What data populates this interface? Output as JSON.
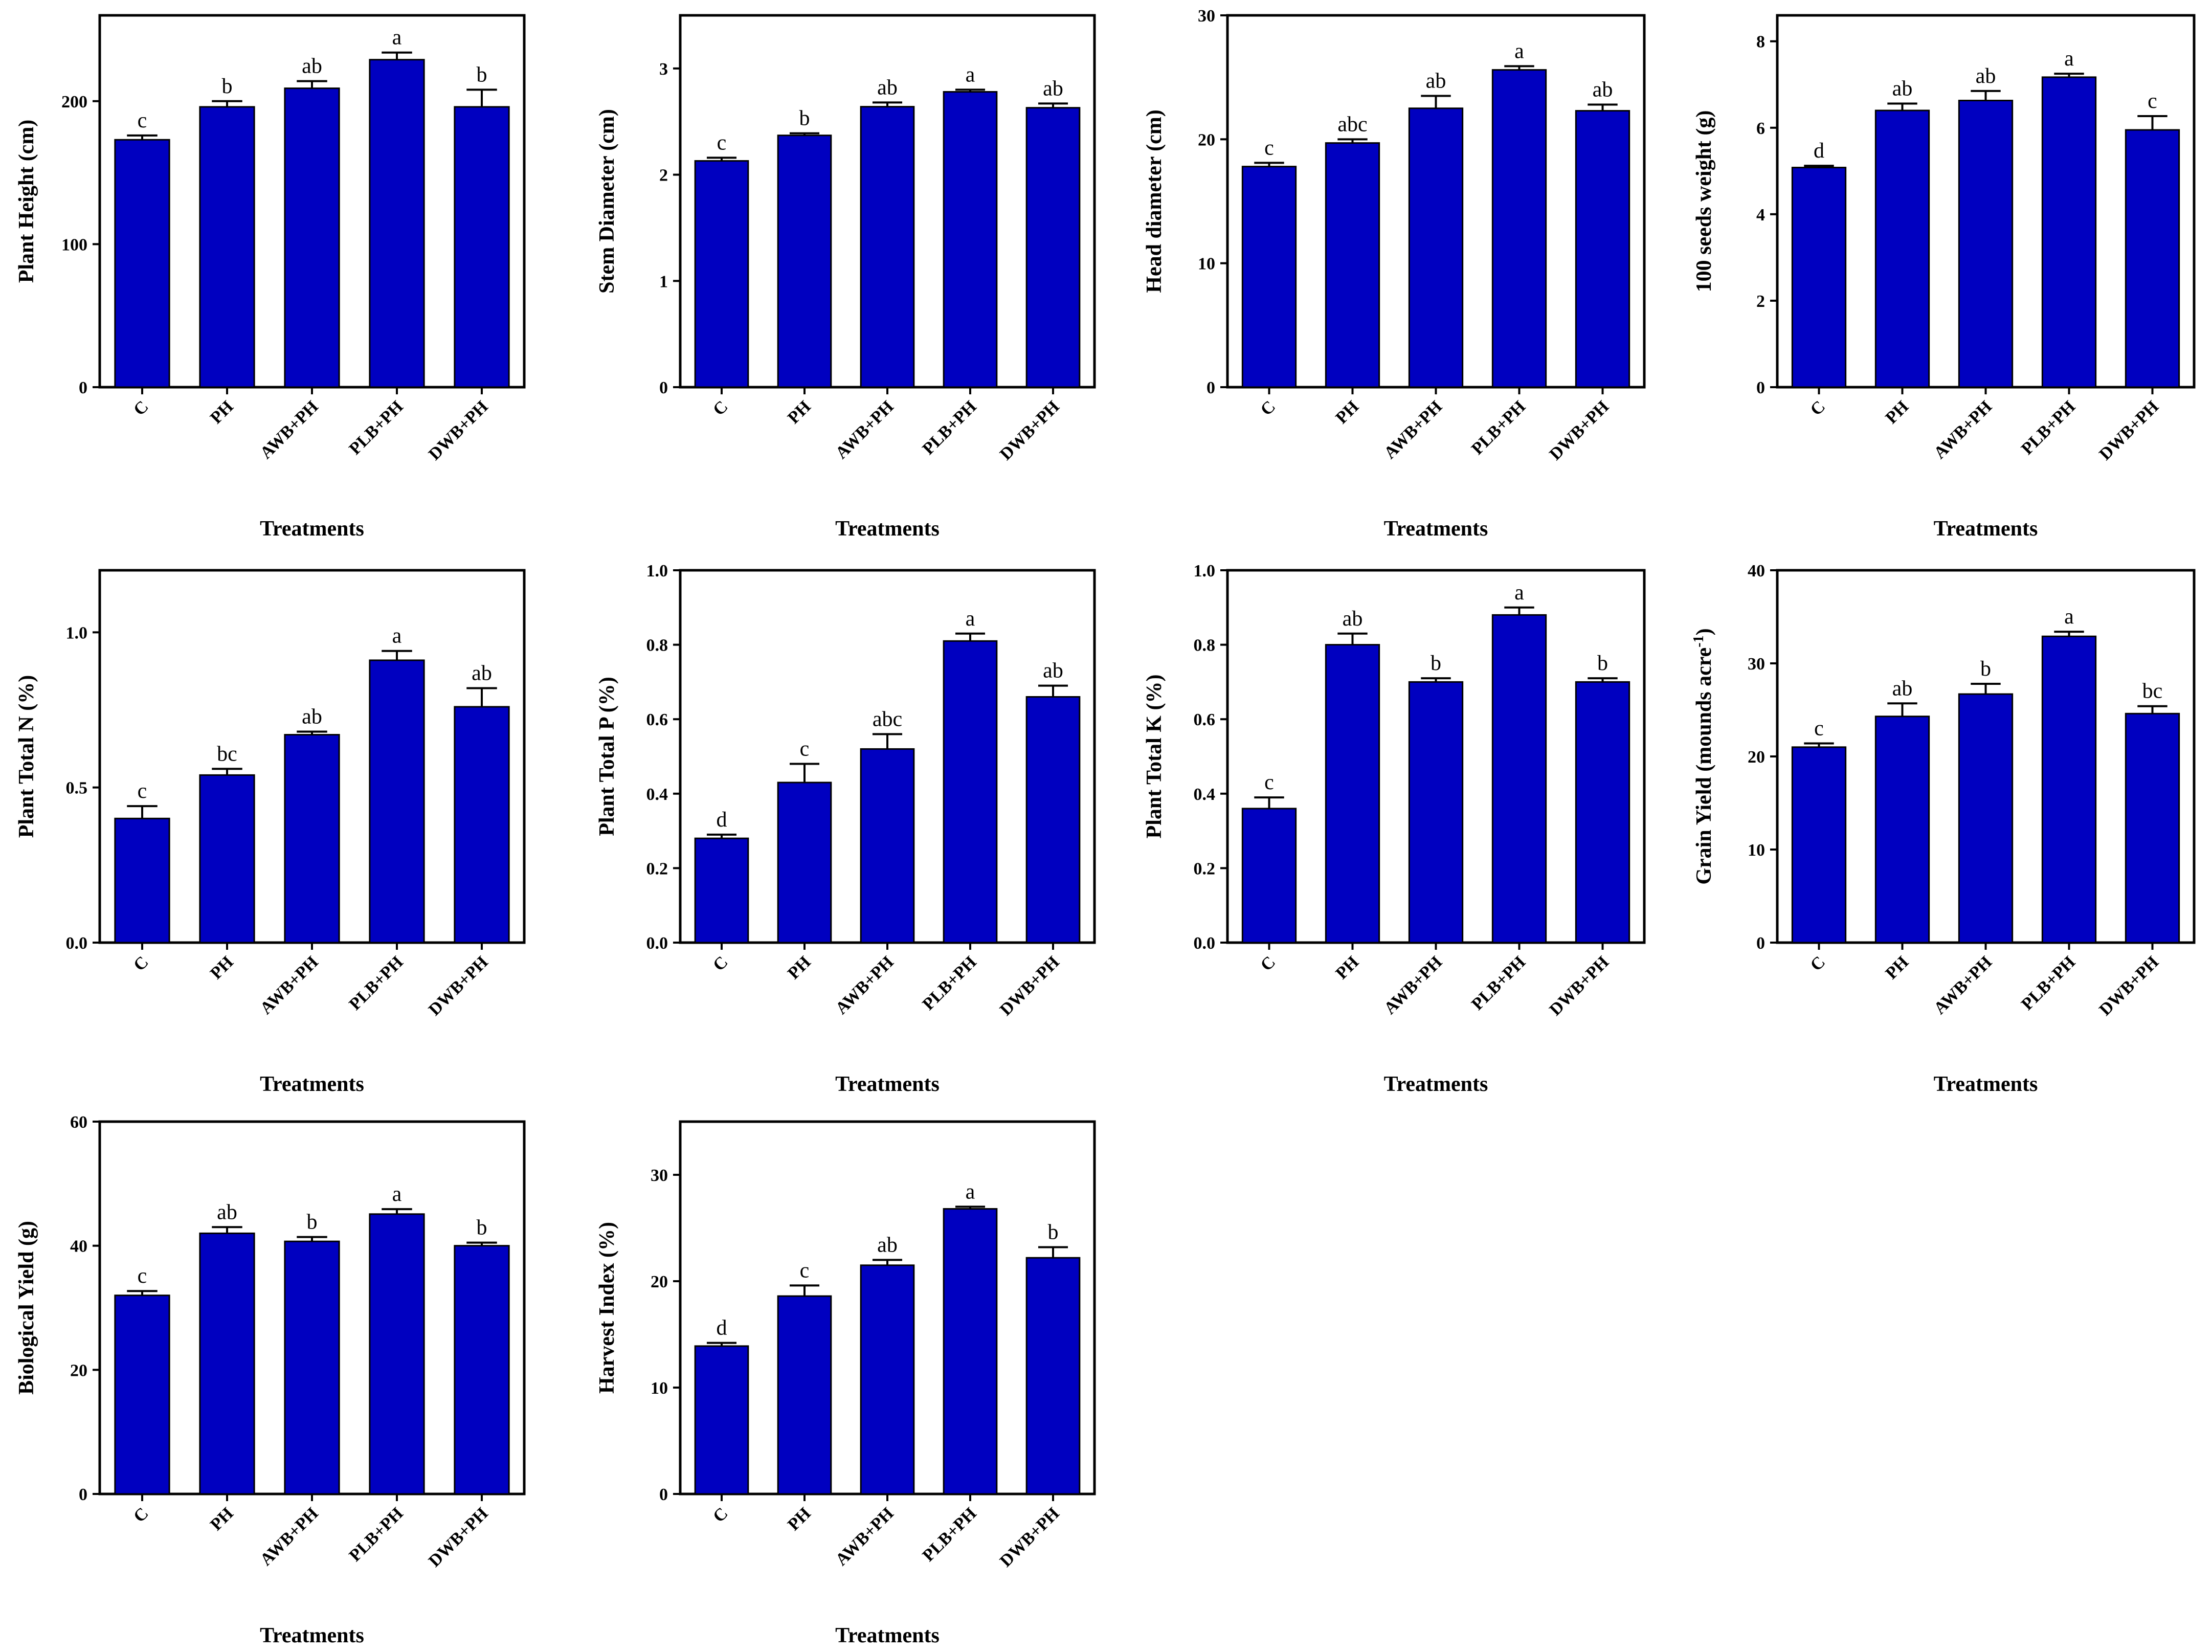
{
  "figure": {
    "categories": [
      "C",
      "PH",
      "AWB+PH",
      "PLB+PH",
      "DWB+PH"
    ],
    "bar_color": "#0000c0"
  },
  "chart_data": [
    {
      "type": "bar",
      "title": "",
      "xlabel": "Treatments",
      "ylabel": "Plant Height (cm)",
      "ylim": [
        0,
        260
      ],
      "ticks": [
        0,
        100,
        200
      ],
      "tick_labels": [
        "0",
        "100",
        "200"
      ],
      "categories": [
        "C",
        "PH",
        "AWB+PH",
        "PLB+PH",
        "DWB+PH"
      ],
      "values": [
        173,
        196,
        209,
        229,
        196
      ],
      "errors": [
        3,
        4,
        5,
        5,
        12
      ],
      "letters": [
        "c",
        "b",
        "ab",
        "a",
        "b"
      ]
    },
    {
      "type": "bar",
      "title": "",
      "xlabel": "Treatments",
      "ylabel": "Stem Diameter (cm)",
      "ylim": [
        0,
        3.5
      ],
      "ticks": [
        0,
        1,
        2,
        3
      ],
      "tick_labels": [
        "0",
        "1",
        "2",
        "3"
      ],
      "categories": [
        "C",
        "PH",
        "AWB+PH",
        "PLB+PH",
        "DWB+PH"
      ],
      "values": [
        2.13,
        2.37,
        2.64,
        2.78,
        2.63
      ],
      "errors": [
        0.03,
        0.02,
        0.04,
        0.02,
        0.04
      ],
      "letters": [
        "c",
        "b",
        "ab",
        "a",
        "ab"
      ]
    },
    {
      "type": "bar",
      "title": "",
      "xlabel": "Treatments",
      "ylabel": "Head diameter (cm)",
      "ylim": [
        0,
        30
      ],
      "ticks": [
        0,
        10,
        20,
        30
      ],
      "tick_labels": [
        "0",
        "10",
        "20",
        "30"
      ],
      "categories": [
        "C",
        "PH",
        "AWB+PH",
        "PLB+PH",
        "DWB+PH"
      ],
      "values": [
        17.8,
        19.7,
        22.5,
        25.6,
        22.3
      ],
      "errors": [
        0.3,
        0.3,
        1.0,
        0.3,
        0.5
      ],
      "letters": [
        "c",
        "abc",
        "ab",
        "a",
        "ab"
      ]
    },
    {
      "type": "bar",
      "title": "",
      "xlabel": "Treatments",
      "ylabel": "100 seeds weight (g)",
      "ylim": [
        0,
        8.6
      ],
      "ticks": [
        0,
        2,
        4,
        6,
        8
      ],
      "tick_labels": [
        "0",
        "2",
        "4",
        "6",
        "8"
      ],
      "categories": [
        "C",
        "PH",
        "AWB+PH",
        "PLB+PH",
        "DWB+PH"
      ],
      "values": [
        5.08,
        6.4,
        6.63,
        7.17,
        5.95
      ],
      "errors": [
        0.04,
        0.16,
        0.22,
        0.08,
        0.32
      ],
      "letters": [
        "d",
        "ab",
        "ab",
        "a",
        "c"
      ]
    },
    {
      "type": "bar",
      "title": "",
      "xlabel": "Treatments",
      "ylabel": "Plant Total N (%)",
      "ylim": [
        0,
        1.2
      ],
      "ticks": [
        0,
        0.5,
        1.0
      ],
      "tick_labels": [
        "0.0",
        "0.5",
        "1.0"
      ],
      "categories": [
        "C",
        "PH",
        "AWB+PH",
        "PLB+PH",
        "DWB+PH"
      ],
      "values": [
        0.4,
        0.54,
        0.67,
        0.91,
        0.76
      ],
      "errors": [
        0.04,
        0.02,
        0.01,
        0.03,
        0.06
      ],
      "letters": [
        "c",
        "bc",
        "ab",
        "a",
        "ab"
      ]
    },
    {
      "type": "bar",
      "title": "",
      "xlabel": "Treatments",
      "ylabel": "Plant Total P (%)",
      "ylim": [
        0,
        1.0
      ],
      "ticks": [
        0,
        0.2,
        0.4,
        0.6,
        0.8,
        1.0
      ],
      "tick_labels": [
        "0.0",
        "0.2",
        "0.4",
        "0.6",
        "0.8",
        "1.0"
      ],
      "categories": [
        "C",
        "PH",
        "AWB+PH",
        "PLB+PH",
        "DWB+PH"
      ],
      "values": [
        0.28,
        0.43,
        0.52,
        0.81,
        0.66
      ],
      "errors": [
        0.01,
        0.05,
        0.04,
        0.02,
        0.03
      ],
      "letters": [
        "d",
        "c",
        "abc",
        "a",
        "ab"
      ]
    },
    {
      "type": "bar",
      "title": "",
      "xlabel": "Treatments",
      "ylabel": "Plant Total K (%)",
      "ylim": [
        0,
        1.0
      ],
      "ticks": [
        0,
        0.2,
        0.4,
        0.6,
        0.8,
        1.0
      ],
      "tick_labels": [
        "0.0",
        "0.2",
        "0.4",
        "0.6",
        "0.8",
        "1.0"
      ],
      "categories": [
        "C",
        "PH",
        "AWB+PH",
        "PLB+PH",
        "DWB+PH"
      ],
      "values": [
        0.36,
        0.8,
        0.7,
        0.88,
        0.7
      ],
      "errors": [
        0.03,
        0.03,
        0.01,
        0.02,
        0.01
      ],
      "letters": [
        "c",
        "ab",
        "b",
        "a",
        "b"
      ]
    },
    {
      "type": "bar",
      "title": "",
      "xlabel": "Treatments",
      "ylabel": "Grain Yield (mounds acre",
      "ylabel_sup": "-1",
      "ylabel_end": ")",
      "ylim": [
        0,
        40
      ],
      "ticks": [
        0,
        10,
        20,
        30,
        40
      ],
      "tick_labels": [
        "0",
        "10",
        "20",
        "30",
        "40"
      ],
      "categories": [
        "C",
        "PH",
        "AWB+PH",
        "PLB+PH",
        "DWB+PH"
      ],
      "values": [
        21.0,
        24.3,
        26.7,
        32.9,
        24.6
      ],
      "errors": [
        0.4,
        1.4,
        1.1,
        0.5,
        0.8
      ],
      "letters": [
        "c",
        "ab",
        "b",
        "a",
        "bc"
      ]
    },
    {
      "type": "bar",
      "title": "",
      "xlabel": "Treatments",
      "ylabel": "Biological Yield (g)",
      "ylim": [
        0,
        60
      ],
      "ticks": [
        0,
        20,
        40,
        60
      ],
      "tick_labels": [
        "0",
        "20",
        "40",
        "60"
      ],
      "categories": [
        "C",
        "PH",
        "AWB+PH",
        "PLB+PH",
        "DWB+PH"
      ],
      "values": [
        32.0,
        42.0,
        40.7,
        45.1,
        40.0
      ],
      "errors": [
        0.7,
        1.0,
        0.7,
        0.8,
        0.5
      ],
      "letters": [
        "c",
        "ab",
        "b",
        "a",
        "b"
      ]
    },
    {
      "type": "bar",
      "title": "",
      "xlabel": "Treatments",
      "ylabel": "Harvest Index (%)",
      "ylim": [
        0,
        35
      ],
      "ticks": [
        0,
        10,
        20,
        30
      ],
      "tick_labels": [
        "0",
        "10",
        "20",
        "30"
      ],
      "categories": [
        "C",
        "PH",
        "AWB+PH",
        "PLB+PH",
        "DWB+PH"
      ],
      "values": [
        13.9,
        18.6,
        21.5,
        26.8,
        22.2
      ],
      "errors": [
        0.3,
        1.0,
        0.5,
        0.2,
        1.0
      ],
      "letters": [
        "d",
        "c",
        "ab",
        "a",
        "b"
      ]
    }
  ]
}
